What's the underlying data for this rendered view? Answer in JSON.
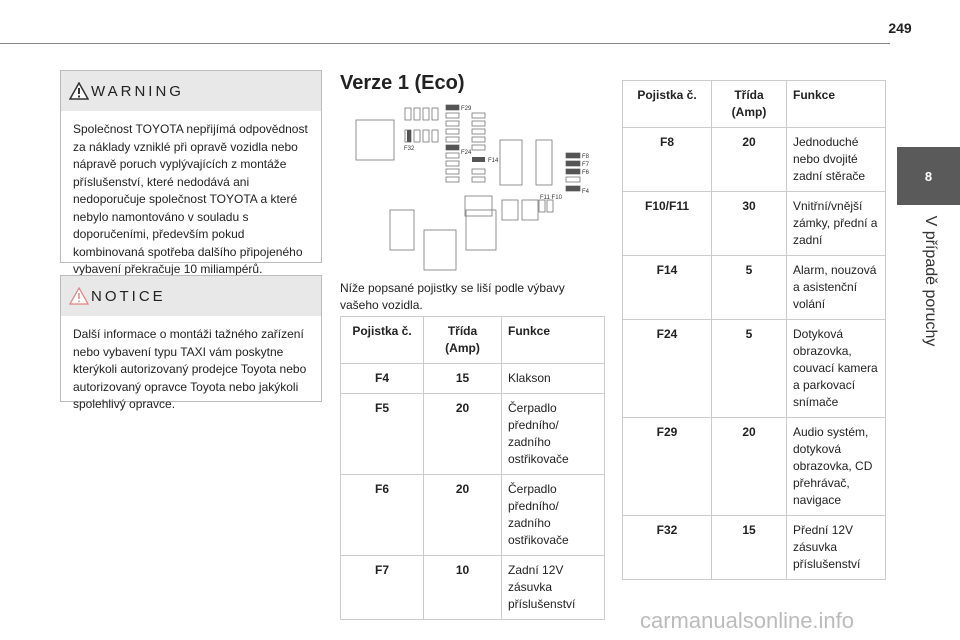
{
  "header": {
    "page_number": "249"
  },
  "side_tab": {
    "number": "8",
    "title": "V případě poruchy"
  },
  "warning": {
    "title": "WARNING",
    "text": "Společnost TOYOTA nepřijímá odpovědnost za náklady vzniklé při opravě vozidla nebo nápravě poruch vyplývajících z montáže příslušenství, které nedodává ani nedoporučuje společnost TOYOTA a které nebylo namontováno v souladu s doporučeními, především pokud kombinovaná spotřeba dalšího připojeného vybavení překračuje 10 miliampérů."
  },
  "notice": {
    "title": "NOTICE",
    "text": "Další informace o montáži tažného zařízení nebo vybavení typu TAXI vám poskytne kterýkoli autorizovaný prodejce Toyota nebo autorizovaný opravce Toyota nebo jakýkoli spolehlivý opravce."
  },
  "section": {
    "title": "Verze 1 (Eco)",
    "diagram": {
      "labels": [
        "F29",
        "F32",
        "F24",
        "F14",
        "F8",
        "F7",
        "F6",
        "F4",
        "F11 F10"
      ]
    },
    "intro": "Níže popsané pojistky se liší podle výbavy vašeho vozidla."
  },
  "table_left": {
    "headers": [
      "Pojistka č.",
      "Třída (Amp)",
      "Funkce"
    ],
    "rows": [
      [
        "F4",
        "15",
        "Klakson"
      ],
      [
        "F5",
        "20",
        "Čerpadlo předního/ zadního ostřikovače"
      ],
      [
        "F6",
        "20",
        "Čerpadlo předního/ zadního ostřikovače"
      ],
      [
        "F7",
        "10",
        "Zadní 12V zásuvka příslušenství"
      ]
    ]
  },
  "table_right": {
    "headers": [
      "Pojistka č.",
      "Třída (Amp)",
      "Funkce"
    ],
    "rows": [
      [
        "F8",
        "20",
        "Jednoduché nebo dvojité zadní stěrače"
      ],
      [
        "F10/F11",
        "30",
        "Vnitřní/vnější zámky, přední a zadní"
      ],
      [
        "F14",
        "5",
        "Alarm, nouzová a asistenční volání"
      ],
      [
        "F24",
        "5",
        "Dotyková obrazovka, couvací kamera a parkovací snímače"
      ],
      [
        "F29",
        "20",
        "Audio systém, dotyková obrazovka, CD přehrávač, navigace"
      ],
      [
        "F32",
        "15",
        "Přední 12V zásuvka příslušenství"
      ]
    ]
  },
  "footer": {
    "watermark": "carmanualsonline.info"
  }
}
